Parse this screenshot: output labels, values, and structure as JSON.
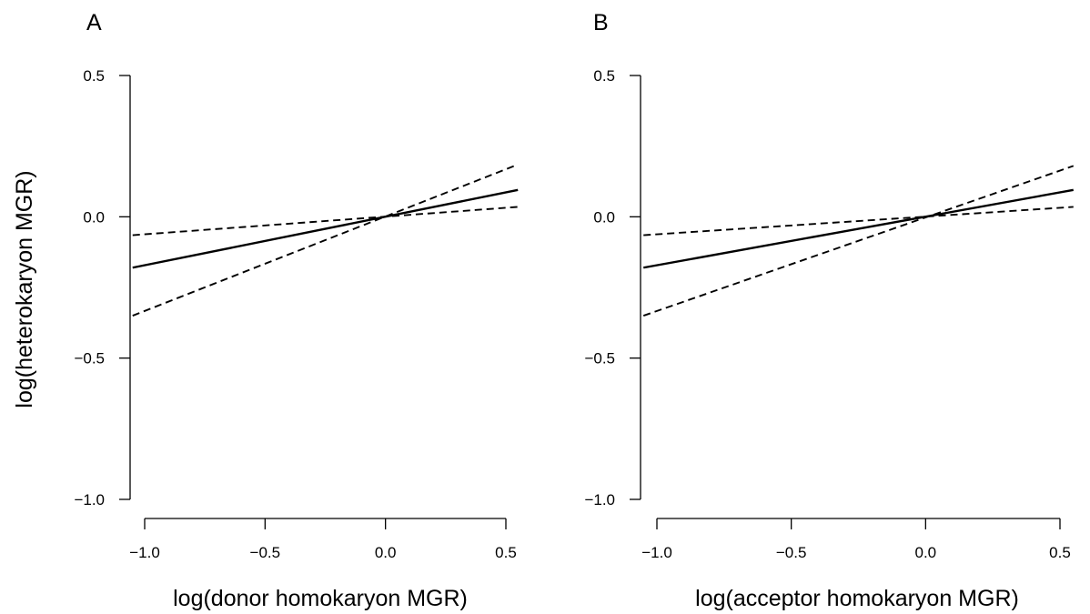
{
  "ylabel": "log(heterokaryon MGR)",
  "chart_data": [
    {
      "type": "line",
      "panel_label": "A",
      "xlabel": "log(donor homokaryon MGR)",
      "ylabel": "log(heterokaryon MGR)",
      "xlim": [
        -1.05,
        0.55
      ],
      "ylim": [
        -1.0,
        0.5
      ],
      "xticks": [
        -1.0,
        -0.5,
        0.0,
        0.5
      ],
      "xtick_labels": [
        "−1.0",
        "−0.5",
        "0.0",
        "0.5"
      ],
      "yticks": [
        -1.0,
        -0.5,
        0.0,
        0.5
      ],
      "ytick_labels": [
        "−1.0",
        "−0.5",
        "0.0",
        "0.5"
      ],
      "grid": false,
      "series": [
        {
          "style": "solid",
          "x": [
            -1.05,
            0.55
          ],
          "y": [
            -0.18,
            0.095
          ]
        },
        {
          "style": "dashed",
          "x": [
            -1.05,
            0.55
          ],
          "y": [
            -0.065,
            0.035
          ]
        },
        {
          "style": "dashed",
          "x": [
            -1.05,
            0.55
          ],
          "y": [
            -0.35,
            0.185
          ]
        }
      ]
    },
    {
      "type": "line",
      "panel_label": "B",
      "xlabel": "log(acceptor homokaryon MGR)",
      "ylabel": "",
      "xlim": [
        -1.05,
        0.55
      ],
      "ylim": [
        -1.0,
        0.5
      ],
      "xticks": [
        -1.0,
        -0.5,
        0.0,
        0.5
      ],
      "xtick_labels": [
        "−1.0",
        "−0.5",
        "0.0",
        "0.5"
      ],
      "yticks": [
        -1.0,
        -0.5,
        0.0,
        0.5
      ],
      "ytick_labels": [
        "−1.0",
        "−0.5",
        "0.0",
        "0.5"
      ],
      "grid": false,
      "series": [
        {
          "style": "solid",
          "x": [
            -1.05,
            0.55
          ],
          "y": [
            -0.18,
            0.095
          ]
        },
        {
          "style": "dashed",
          "x": [
            -1.05,
            0.55
          ],
          "y": [
            -0.065,
            0.035
          ]
        },
        {
          "style": "dashed",
          "x": [
            -1.05,
            0.55
          ],
          "y": [
            -0.35,
            0.18
          ]
        }
      ]
    }
  ]
}
